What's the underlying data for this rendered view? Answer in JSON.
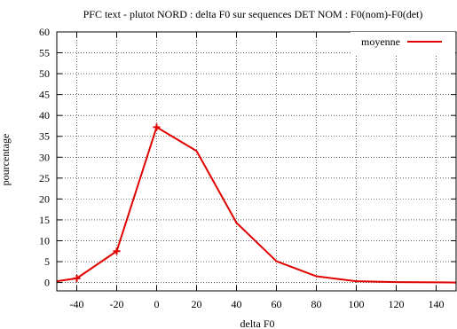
{
  "chart_data": {
    "type": "line",
    "title": "PFC text - plutot NORD : delta F0 sur sequences DET NOM : F0(nom)-F0(det)",
    "xlabel": "delta F0",
    "ylabel": "pourcentage",
    "xlim": [
      -50,
      150
    ],
    "ylim": [
      -2,
      60
    ],
    "xticks": [
      -40,
      -20,
      0,
      20,
      40,
      60,
      80,
      100,
      120,
      140
    ],
    "yticks": [
      0,
      5,
      10,
      15,
      20,
      25,
      30,
      35,
      40,
      45,
      50,
      55,
      60
    ],
    "grid": true,
    "legend_position": "top-right",
    "series": [
      {
        "name": "moyenne",
        "color": "#e00000",
        "x": [
          -50,
          -40,
          -20,
          0,
          20,
          40,
          60,
          80,
          100,
          120,
          140,
          150
        ],
        "y": [
          0.3,
          1.0,
          7.5,
          37.2,
          31.5,
          14.3,
          5.1,
          1.5,
          0.3,
          0.1,
          0.05,
          0.0
        ],
        "marked_x": [
          -40,
          -20,
          0
        ]
      }
    ]
  }
}
